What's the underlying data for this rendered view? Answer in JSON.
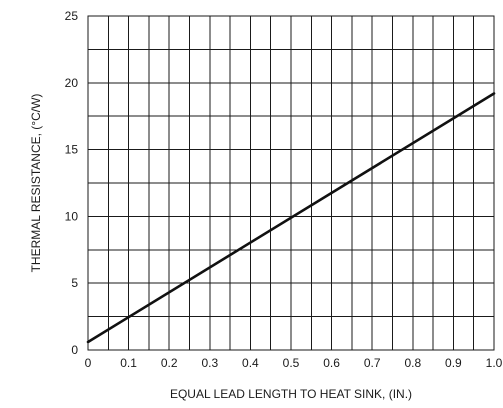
{
  "chart_data": {
    "type": "line",
    "title": "",
    "xlabel": "EQUAL LEAD LENGTH TO HEAT SINK, (IN.)",
    "ylabel": "THERMAL RESISTANCE, (°C/W)",
    "xlim": [
      0,
      1.0
    ],
    "ylim": [
      0,
      25
    ],
    "x_ticks": [
      "0",
      "0.1",
      "0.2",
      "0.3",
      "0.4",
      "0.5",
      "0.6",
      "0.7",
      "0.8",
      "0.9",
      "1.0"
    ],
    "y_ticks": [
      "0",
      "5",
      "10",
      "15",
      "20",
      "25"
    ],
    "x_minor_divisions": 2,
    "y_minor_divisions": 2,
    "grid": true,
    "legend": "none",
    "series": [
      {
        "x": [
          0,
          1.0
        ],
        "y": [
          0.6,
          19.2
        ]
      }
    ],
    "colors": {
      "line": "#111111",
      "grid": "#1a1a1a"
    }
  }
}
